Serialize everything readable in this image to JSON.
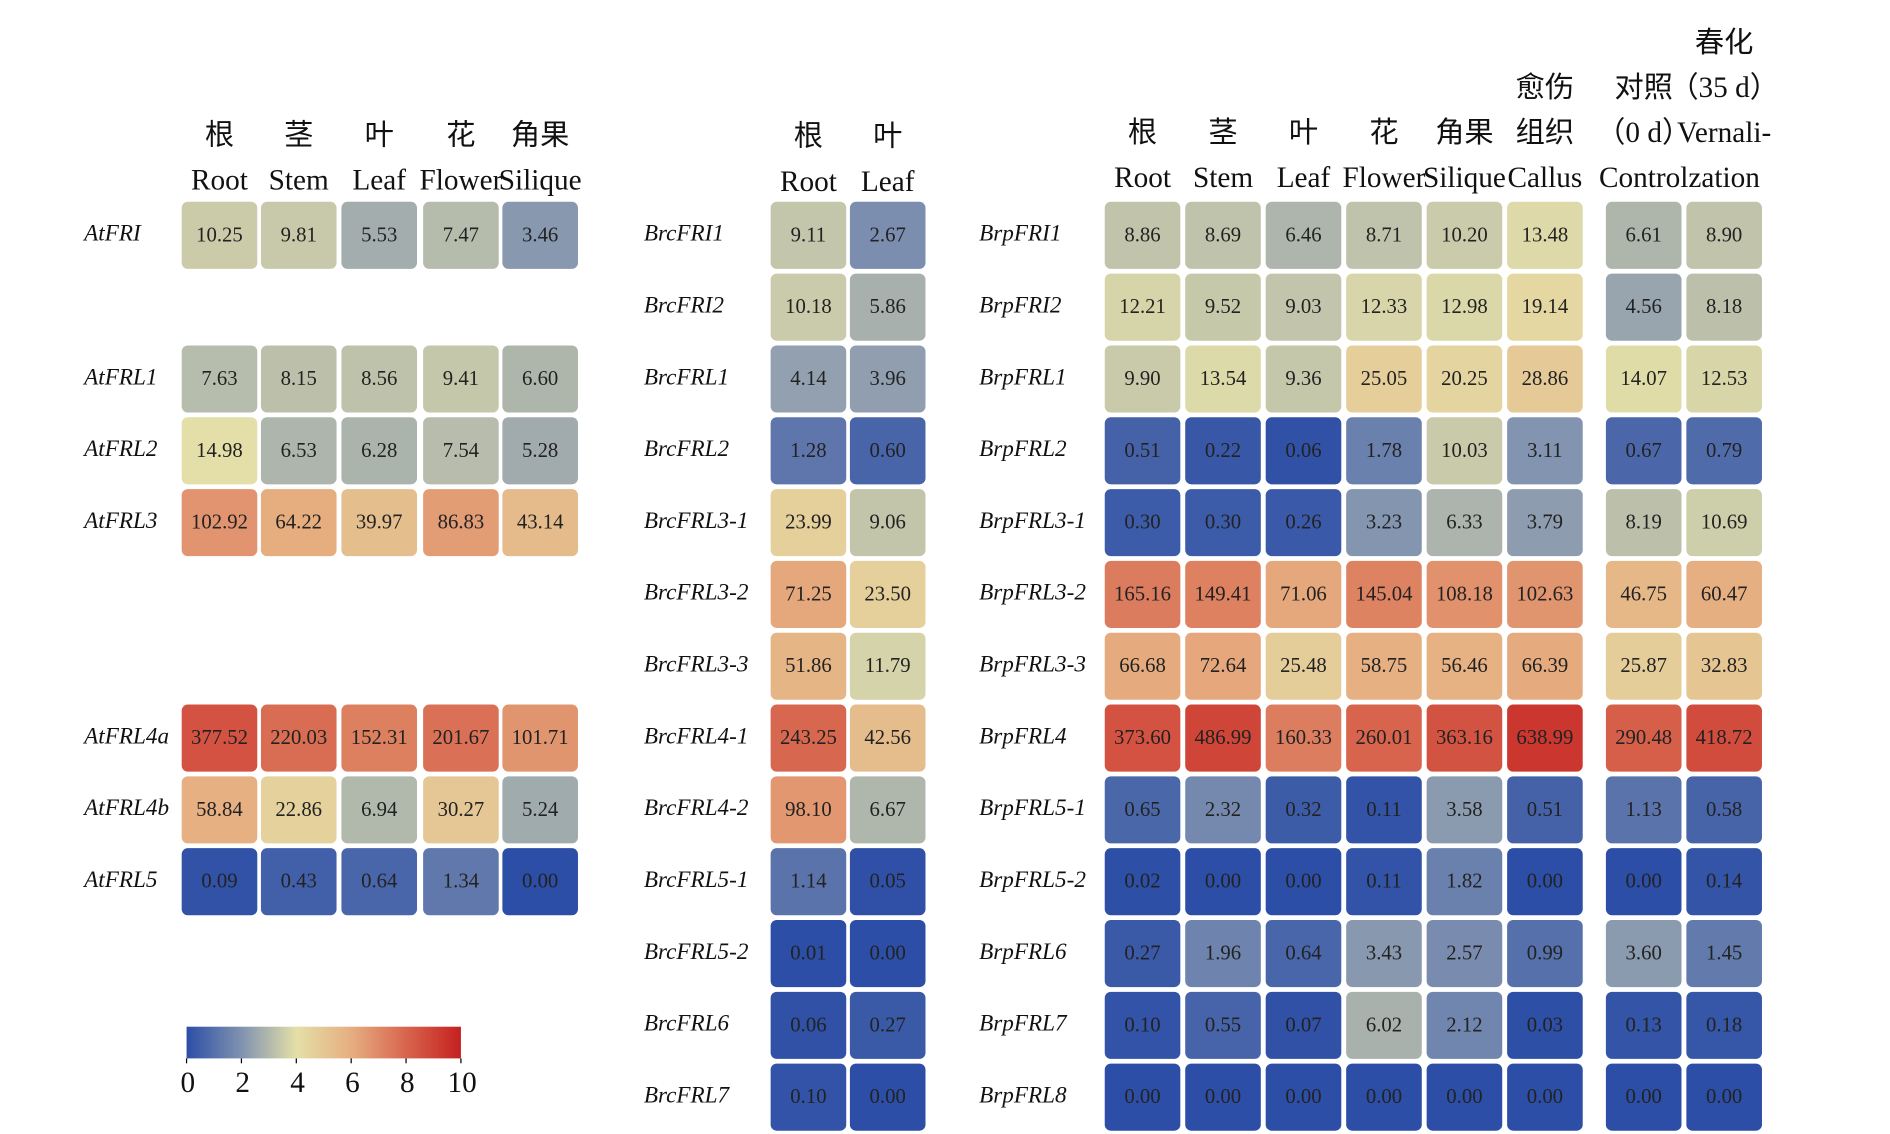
{
  "chart_data": [
    {
      "type": "heatmap",
      "columns": [
        [
          "根",
          "Root"
        ],
        [
          "茎",
          "Stem"
        ],
        [
          "叶",
          "Leaf"
        ],
        [
          "花",
          "Flower"
        ],
        [
          "角果",
          "Silique"
        ]
      ],
      "rows": [
        "AtFRI",
        "AtFRL1",
        "AtFRL2",
        "AtFRL3",
        "AtFRL4a",
        "AtFRL4b",
        "AtFRL5"
      ],
      "values": [
        [
          10.25,
          9.81,
          5.53,
          7.47,
          3.46
        ],
        [
          7.63,
          8.15,
          8.56,
          9.41,
          6.6
        ],
        [
          14.98,
          6.53,
          6.28,
          7.54,
          5.28
        ],
        [
          102.92,
          64.22,
          39.97,
          86.83,
          43.14
        ],
        [
          377.52,
          220.03,
          152.31,
          201.67,
          101.71
        ],
        [
          58.84,
          22.86,
          6.94,
          30.27,
          5.24
        ],
        [
          0.09,
          0.43,
          0.64,
          1.34,
          0
        ]
      ],
      "value_labels": [
        [
          "10.25",
          "9.81",
          "5.53",
          "7.47",
          "3.46"
        ],
        [
          "7.63",
          "8.15",
          "8.56",
          "9.41",
          "6.60"
        ],
        [
          "14.98",
          "6.53",
          "6.28",
          "7.54",
          "5.28"
        ],
        [
          "102.92",
          "64.22",
          "39.97",
          "86.83",
          "43.14"
        ],
        [
          "377.52",
          "220.03",
          "152.31",
          "201.67",
          "101.71"
        ],
        [
          "58.84",
          "22.86",
          "6.94",
          "30.27",
          "5.24"
        ],
        [
          "0.09",
          "0.43",
          "0.64",
          "1.34",
          "0.00"
        ]
      ],
      "colorbar": {
        "lim": [
          0,
          10
        ],
        "ticks": [
          0,
          2,
          4,
          6,
          8,
          10
        ]
      },
      "colors": [
        "#2c4ea6",
        "#8092b0",
        "#e4dfa8",
        "#e6ae80",
        "#d8654e",
        "#c5201f"
      ]
    },
    {
      "type": "heatmap",
      "columns": [
        [
          "根",
          "Root"
        ],
        [
          "叶",
          "Leaf"
        ]
      ],
      "rows": [
        "BrcFRI1",
        "BrcFRI2",
        "BrcFRL1",
        "BrcFRL2",
        "BrcFRL3-1",
        "BrcFRL3-2",
        "BrcFRL3-3",
        "BrcFRL4-1",
        "BrcFRL4-2",
        "BrcFRL5-1",
        "BrcFRL5-2",
        "BrcFRL6",
        "BrcFRL7"
      ],
      "values": [
        [
          9.11,
          2.67
        ],
        [
          10.18,
          5.86
        ],
        [
          4.14,
          3.96
        ],
        [
          1.28,
          0.6
        ],
        [
          23.99,
          9.06
        ],
        [
          71.25,
          23.5
        ],
        [
          51.86,
          11.79
        ],
        [
          243.25,
          42.56
        ],
        [
          98.1,
          6.67
        ],
        [
          1.14,
          0.05
        ],
        [
          0.01,
          0
        ],
        [
          0.06,
          0.27
        ],
        [
          0.1,
          0
        ]
      ],
      "value_labels": [
        [
          "9.11",
          "2.67"
        ],
        [
          "10.18",
          "5.86"
        ],
        [
          "4.14",
          "3.96"
        ],
        [
          "1.28",
          "0.60"
        ],
        [
          "23.99",
          "9.06"
        ],
        [
          "71.25",
          "23.50"
        ],
        [
          "51.86",
          "11.79"
        ],
        [
          "243.25",
          "42.56"
        ],
        [
          "98.10",
          "6.67"
        ],
        [
          "1.14",
          "0.05"
        ],
        [
          "0.01",
          "0.00"
        ],
        [
          "0.06",
          "0.27"
        ],
        [
          "0.10",
          "0.00"
        ]
      ]
    },
    {
      "type": "heatmap",
      "columns": [
        [
          "根",
          "Root"
        ],
        [
          "茎",
          "Stem"
        ],
        [
          "叶",
          "Leaf"
        ],
        [
          "花",
          "Flower"
        ],
        [
          "角果",
          "Silique"
        ],
        [
          "愈伤",
          "组织",
          "Callus"
        ],
        [
          "对照",
          "（0 d）",
          "Control"
        ],
        [
          "春化",
          "（35 d）",
          "Vernali-",
          "zation"
        ]
      ],
      "rows": [
        "BrpFRI1",
        "BrpFRI2",
        "BrpFRL1",
        "BrpFRL2",
        "BrpFRL3-1",
        "BrpFRL3-2",
        "BrpFRL3-3",
        "BrpFRL4",
        "BrpFRL5-1",
        "BrpFRL5-2",
        "BrpFRL6",
        "BrpFRL7",
        "BrpFRL8"
      ],
      "values": [
        [
          8.86,
          8.69,
          6.46,
          8.71,
          10.2,
          13.48,
          6.61,
          8.9
        ],
        [
          12.21,
          9.52,
          9.03,
          12.33,
          12.98,
          19.14,
          4.56,
          8.18
        ],
        [
          9.9,
          13.54,
          9.36,
          25.05,
          20.25,
          28.86,
          14.07,
          12.53
        ],
        [
          0.51,
          0.22,
          0.06,
          1.78,
          10.03,
          3.11,
          0.67,
          0.79
        ],
        [
          0.3,
          0.3,
          0.26,
          3.23,
          6.33,
          3.79,
          8.19,
          10.69
        ],
        [
          165.16,
          149.41,
          71.06,
          145.04,
          108.18,
          102.63,
          46.75,
          60.47
        ],
        [
          66.68,
          72.64,
          25.48,
          58.75,
          56.46,
          66.39,
          25.87,
          32.83
        ],
        [
          373.6,
          486.99,
          160.33,
          260.01,
          363.16,
          638.99,
          290.48,
          418.72
        ],
        [
          0.65,
          2.32,
          0.32,
          0.11,
          3.58,
          0.51,
          1.13,
          0.58
        ],
        [
          0.02,
          0,
          0,
          0.11,
          1.82,
          0,
          0,
          0.14
        ],
        [
          0.27,
          1.96,
          0.64,
          3.43,
          2.57,
          0.99,
          3.6,
          1.45
        ],
        [
          0.1,
          0.55,
          0.07,
          6.02,
          2.12,
          0.03,
          0.13,
          0.18
        ],
        [
          0,
          0,
          0,
          0,
          0,
          0,
          0,
          0
        ]
      ],
      "value_labels": [
        [
          "8.86",
          "8.69",
          "6.46",
          "8.71",
          "10.20",
          "13.48",
          "6.61",
          "8.90"
        ],
        [
          "12.21",
          "9.52",
          "9.03",
          "12.33",
          "12.98",
          "19.14",
          "4.56",
          "8.18"
        ],
        [
          "9.90",
          "13.54",
          "9.36",
          "25.05",
          "20.25",
          "28.86",
          "14.07",
          "12.53"
        ],
        [
          "0.51",
          "0.22",
          "0.06",
          "1.78",
          "10.03",
          "3.11",
          "0.67",
          "0.79"
        ],
        [
          "0.30",
          "0.30",
          "0.26",
          "3.23",
          "6.33",
          "3.79",
          "8.19",
          "10.69"
        ],
        [
          "165.16",
          "149.41",
          "71.06",
          "145.04",
          "108.18",
          "102.63",
          "46.75",
          "60.47"
        ],
        [
          "66.68",
          "72.64",
          "25.48",
          "58.75",
          "56.46",
          "66.39",
          "25.87",
          "32.83"
        ],
        [
          "373.60",
          "486.99",
          "160.33",
          "260.01",
          "363.16",
          "638.99",
          "290.48",
          "418.72"
        ],
        [
          "0.65",
          "2.32",
          "0.32",
          "0.11",
          "3.58",
          "0.51",
          "1.13",
          "0.58"
        ],
        [
          "0.02",
          "0.00",
          "0.00",
          "0.11",
          "1.82",
          "0.00",
          "0.00",
          "0.14"
        ],
        [
          "0.27",
          "1.96",
          "0.64",
          "3.43",
          "2.57",
          "0.99",
          "3.60",
          "1.45"
        ],
        [
          "0.10",
          "0.55",
          "0.07",
          "6.02",
          "2.12",
          "0.03",
          "0.13",
          "0.18"
        ],
        [
          "0.00",
          "0.00",
          "0.00",
          "0.00",
          "0.00",
          "0.00",
          "0.00",
          "0.00"
        ]
      ]
    }
  ]
}
